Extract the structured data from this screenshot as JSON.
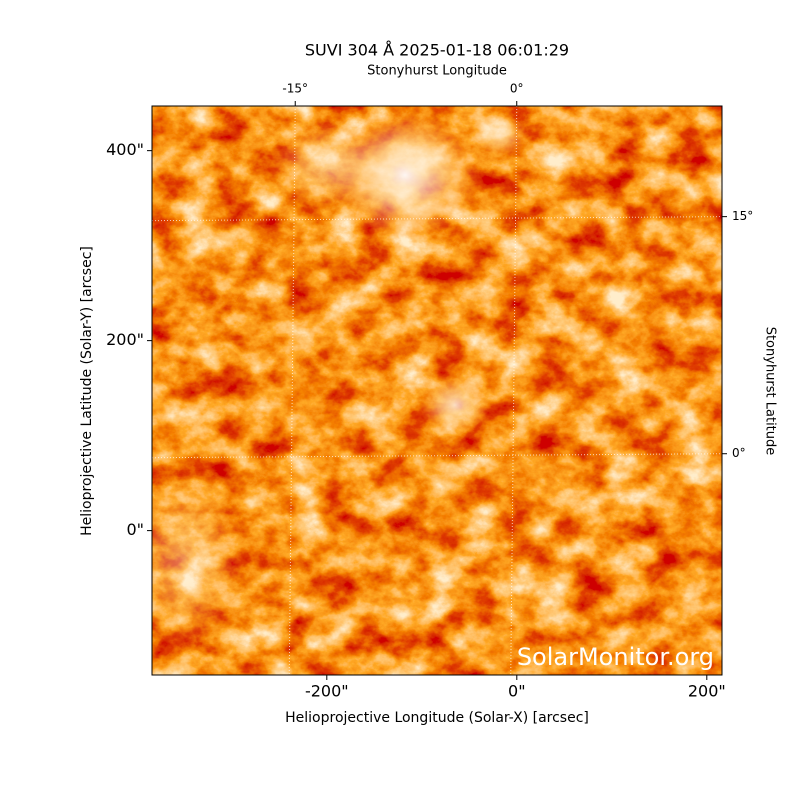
{
  "chart_data": {
    "type": "image",
    "title": "SUVI 304 Å 2025-01-18 06:01:29",
    "x_label": "Helioprojective Longitude (Solar-X) [arcsec]",
    "y_label": "Helioprojective Latitude (Solar-Y) [arcsec]",
    "x2_label": "Stonyhurst Longitude",
    "y2_label": "Stonyhurst Latitude",
    "watermark": "SolarMonitor.org",
    "xlim": [
      -384,
      216
    ],
    "ylim": [
      -152,
      447
    ],
    "xticks": [
      {
        "value": -200,
        "label": "-200\""
      },
      {
        "value": 0,
        "label": "0\""
      },
      {
        "value": 200,
        "label": "200\""
      }
    ],
    "yticks": [
      {
        "value": 0,
        "label": "0\""
      },
      {
        "value": 200,
        "label": "200\""
      },
      {
        "value": 400,
        "label": "400\""
      }
    ],
    "x2lim": [
      -24.7,
      13.9
    ],
    "y2lim": [
      -14,
      22
    ],
    "x2ticks": [
      {
        "value": -15,
        "label": "-15°"
      },
      {
        "value": 0,
        "label": "0°"
      }
    ],
    "y2ticks": [
      {
        "value": 0,
        "label": "0°"
      },
      {
        "value": 15,
        "label": "15°"
      }
    ],
    "grid": true
  }
}
